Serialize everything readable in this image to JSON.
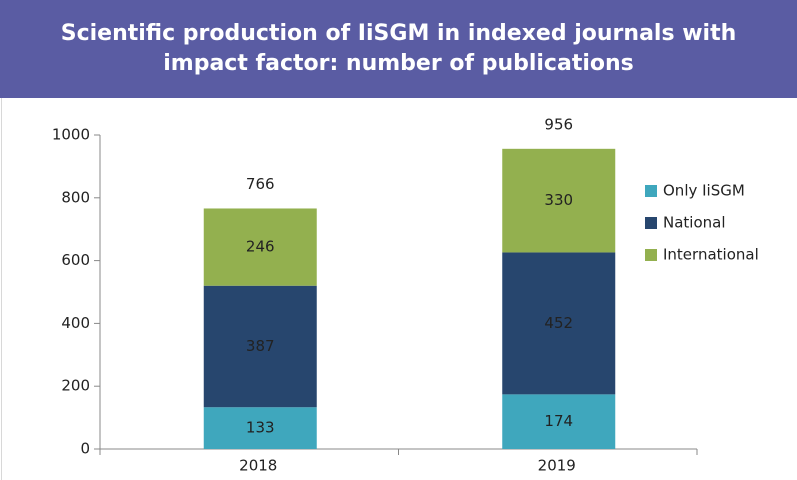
{
  "chart_data": {
    "type": "stacked_bar",
    "title": "Scientific production of IiSGM in indexed journals with impact factor: number of publications",
    "categories": [
      "2018",
      "2019"
    ],
    "series": [
      {
        "name": "Only IiSGM",
        "color": "#3fa7bd",
        "values": [
          133,
          174
        ]
      },
      {
        "name": "National",
        "color": "#27466e",
        "values": [
          387,
          452
        ]
      },
      {
        "name": "International",
        "color": "#93b04f",
        "values": [
          246,
          330
        ]
      }
    ],
    "totals": [
      766,
      956
    ],
    "ylim": [
      0,
      1000
    ],
    "yticks": [
      0,
      200,
      400,
      600,
      800,
      1000
    ],
    "legend": "right"
  }
}
